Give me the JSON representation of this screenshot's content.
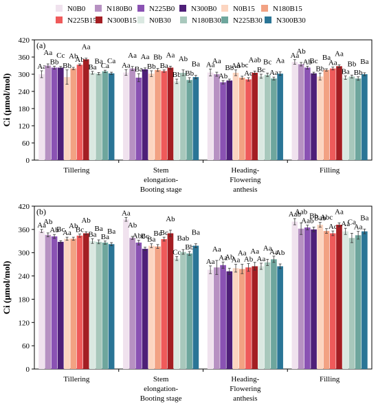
{
  "legend": {
    "entries": [
      "N0B0",
      "N180B0",
      "N225B0",
      "N300B0",
      "N0B15",
      "N180B15",
      "N225B15",
      "N300B15",
      "N0B30",
      "N180B30",
      "N225B30",
      "N300B30"
    ]
  },
  "colors": [
    "#f0e2ee",
    "#b791c2",
    "#8a52b3",
    "#4e1f78",
    "#fcd5c0",
    "#f2a283",
    "#ef5a5a",
    "#a41e23",
    "#dae8e1",
    "#a8c8bc",
    "#6ea69d",
    "#2a7596"
  ],
  "chart_data": [
    {
      "type": "bar",
      "panel_label": "(a)",
      "ylabel": "Ci (μmol/mol)",
      "ylim": [
        0,
        420
      ],
      "yticks": [
        0,
        60,
        120,
        180,
        240,
        300,
        360,
        420
      ],
      "ytick_labels": [
        "0",
        "60",
        "120",
        "180",
        "240",
        "300",
        "360",
        "420"
      ],
      "categories": [
        "Tillering",
        "Stem elongation-Booting stage",
        "Heading-Flowering anthesis",
        "Filling"
      ],
      "category_label_lines": [
        [
          "Tillering"
        ],
        [
          "Stem",
          "elongation-",
          "Booting stage"
        ],
        [
          "Heading-",
          "Flowering",
          "anthesis"
        ],
        [
          "Filling"
        ]
      ],
      "series": [
        {
          "name": "N0B0",
          "values": [
            300,
            306,
            306,
            343
          ],
          "errors": [
            12,
            10,
            12,
            8
          ],
          "labels": [
            "Aa",
            "Aa",
            "Aa",
            "Aa"
          ]
        },
        {
          "name": "N180B0",
          "values": [
            330,
            320,
            300,
            335
          ],
          "errors": [
            6,
            7,
            7,
            6
          ],
          "labels": [
            "Aa",
            "Aa",
            "Aa",
            "Ab"
          ]
        },
        {
          "name": "N225B0",
          "values": [
            323,
            288,
            272,
            323
          ],
          "errors": [
            5,
            14,
            6,
            5
          ],
          "labels": [
            "Bb",
            "Ba",
            "Ab",
            "Ab"
          ]
        },
        {
          "name": "N300B0",
          "values": [
            323,
            317,
            278,
            303
          ],
          "errors": [
            4,
            5,
            5,
            4
          ],
          "labels": [
            "Cc",
            "Aa",
            "Bb",
            "Bc"
          ]
        },
        {
          "name": "N0B15",
          "values": [
            290,
            302,
            305,
            292
          ],
          "errors": [
            25,
            10,
            10,
            12
          ],
          "labels": [
            "Bb",
            "Bb",
            "Aa",
            "Bb"
          ]
        },
        {
          "name": "N180B15",
          "values": [
            320,
            315,
            288,
            315
          ],
          "errors": [
            4,
            5,
            5,
            4
          ],
          "labels": [
            "Ab",
            "Bb",
            "Abc",
            "Ba"
          ]
        },
        {
          "name": "N225B15",
          "values": [
            333,
            311,
            282,
            320
          ],
          "errors": [
            3,
            4,
            6,
            5
          ],
          "labels": [
            "Ab",
            "Ba",
            "Ac",
            "Aa"
          ]
        },
        {
          "name": "N300B15",
          "values": [
            352,
            323,
            305,
            328
          ],
          "errors": [
            4,
            5,
            6,
            5
          ],
          "labels": [
            "Aa",
            "Aa",
            "Aab",
            "Aa"
          ]
        },
        {
          "name": "N0B30",
          "values": [
            305,
            275,
            293,
            288
          ],
          "errors": [
            5,
            8,
            7,
            6
          ],
          "labels": [
            "Ba",
            "Bb",
            "Bc",
            "Ba"
          ]
        },
        {
          "name": "N180B30",
          "values": [
            302,
            305,
            298,
            292
          ],
          "errors": [
            4,
            10,
            6,
            5
          ],
          "labels": [
            "Ba",
            "Ab",
            "Bc",
            "Bb"
          ]
        },
        {
          "name": "N225B30",
          "values": [
            310,
            280,
            285,
            285
          ],
          "errors": [
            4,
            8,
            5,
            6
          ],
          "labels": [
            "Ca",
            "Bb",
            "Aa",
            "Bb"
          ]
        },
        {
          "name": "N300B30",
          "values": [
            303,
            290,
            302,
            300
          ],
          "errors": [
            4,
            6,
            6,
            5
          ],
          "labels": [
            "Ca",
            "Ba",
            "Aa",
            "Ba"
          ]
        }
      ]
    },
    {
      "type": "bar",
      "panel_label": "(b)",
      "ylabel": "Ci (μmol/mol)",
      "ylim": [
        0,
        420
      ],
      "yticks": [
        0,
        60,
        120,
        180,
        240,
        300,
        360,
        420
      ],
      "ytick_labels": [
        "0",
        "60",
        "120",
        "180",
        "240",
        "300",
        "360",
        "420"
      ],
      "categories": [
        "Tillering",
        "Stem elongation-Booting stage",
        "Heading-Flowering anthesis",
        "Filling"
      ],
      "category_label_lines": [
        [
          "Tillering"
        ],
        [
          "Stem",
          "elongation-",
          "Booting stage"
        ],
        [
          "Heading-",
          "Flowering",
          "anthesis"
        ],
        [
          "Filling"
        ]
      ],
      "series": [
        {
          "name": "N0B0",
          "values": [
            356,
            386,
            256,
            380
          ],
          "errors": [
            4,
            5,
            10,
            8
          ],
          "labels": [
            "Aa",
            "Aa",
            "Aa",
            "Aab"
          ]
        },
        {
          "name": "N180B0",
          "values": [
            346,
            338,
            262,
            362
          ],
          "errors": [
            5,
            4,
            18,
            15
          ],
          "labels": [
            "Ab",
            "Ab",
            "Aa",
            "Aab"
          ]
        },
        {
          "name": "N225B0",
          "values": [
            342,
            326,
            268,
            365
          ],
          "errors": [
            5,
            6,
            8,
            6
          ],
          "labels": [
            "Ab",
            "Abc",
            "Aa",
            "Aab"
          ]
        },
        {
          "name": "N300B0",
          "values": [
            328,
            310,
            252,
            360
          ],
          "errors": [
            3,
            4,
            8,
            6
          ],
          "labels": [
            "Bc",
            "Bc",
            "Ab",
            "Bb"
          ]
        },
        {
          "name": "N0B15",
          "values": [
            336,
            318,
            260,
            372
          ],
          "errors": [
            4,
            5,
            10,
            6
          ],
          "labels": [
            "Aa",
            "Ba",
            "Aa",
            "Bab"
          ]
        },
        {
          "name": "N180B15",
          "values": [
            336,
            316,
            258,
            356
          ],
          "errors": [
            4,
            5,
            12,
            6
          ],
          "labels": [
            "Ab",
            "Bc",
            "Aa",
            "Abc"
          ]
        },
        {
          "name": "N225B15",
          "values": [
            344,
            335,
            262,
            350
          ],
          "errors": [
            4,
            5,
            10,
            6
          ],
          "labels": [
            "Bc",
            "Bc",
            "Ab",
            "Ac"
          ]
        },
        {
          "name": "N300B15",
          "values": [
            350,
            350,
            265,
            372
          ],
          "errors": [
            4,
            8,
            10,
            5
          ],
          "labels": [
            "Ab",
            "Ab",
            "Aa",
            "Aa"
          ]
        },
        {
          "name": "N0B30",
          "values": [
            330,
            285,
            265,
            355
          ],
          "errors": [
            6,
            5,
            8,
            8
          ],
          "labels": [
            "Ba",
            "Cc",
            "Aa",
            "Aa"
          ]
        },
        {
          "name": "N180B30",
          "values": [
            328,
            302,
            275,
            338
          ],
          "errors": [
            5,
            6,
            8,
            12
          ],
          "labels": [
            "Ba",
            "Bab",
            "Aa",
            "Ca"
          ]
        },
        {
          "name": "N225B30",
          "values": [
            326,
            298,
            283,
            345
          ],
          "errors": [
            4,
            5,
            8,
            10
          ],
          "labels": [
            "Ba",
            "Bb",
            "Aa",
            "Aa"
          ]
        },
        {
          "name": "N300B30",
          "values": [
            322,
            318,
            265,
            355
          ],
          "errors": [
            4,
            5,
            6,
            6
          ],
          "labels": [
            "Ba",
            "Ba",
            "Ab",
            "Ba"
          ]
        }
      ]
    }
  ]
}
